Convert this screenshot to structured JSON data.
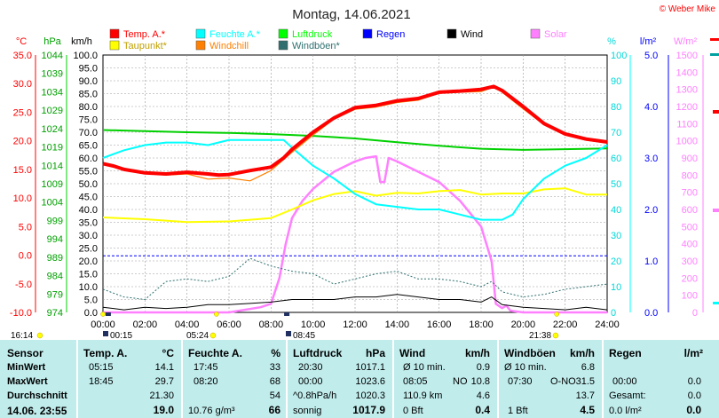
{
  "title": "Montag, 14.06.2021",
  "copyright": "© Weber Mike",
  "colors": {
    "temp": "#ff0000",
    "taupunkt": "#ffff00",
    "feuchte": "#00ffff",
    "windchill": "#ff8000",
    "luftdruck": "#00d000",
    "windboen": "#2f6f6f",
    "regen": "#0000ff",
    "wind": "#000000",
    "solar": "#ff80ff",
    "table_bg": "#c0ecec"
  },
  "legend": [
    {
      "label": "Temp. A.*",
      "color": "#ff0000"
    },
    {
      "label": "Feuchte A.*",
      "color": "#00ffff"
    },
    {
      "label": "Luftdruck",
      "color": "#00ff00"
    },
    {
      "label": "Regen",
      "color": "#0000ff"
    },
    {
      "label": "Wind",
      "color": "#000000"
    },
    {
      "label": "Solar",
      "color": "#ff80ff"
    },
    {
      "label": "Taupunkt*",
      "color": "#ffff00"
    },
    {
      "label": "Windchill",
      "color": "#ff8000"
    },
    {
      "label": "Windböen*",
      "color": "#2f6f6f"
    }
  ],
  "axis_units": {
    "celsius": "°C",
    "hpa": "hPa",
    "kmh": "km/h",
    "percent": "%",
    "rain": "l/m²",
    "solar": "W/m²"
  },
  "axes": {
    "celsius": {
      "ticks": [
        "35.0",
        "30.0",
        "25.0",
        "20.0",
        "15.0",
        "10.0",
        "5.0",
        "0.0",
        "-5.0",
        "-10.0"
      ]
    },
    "hpa": {
      "ticks": [
        "1044",
        "1039",
        "1034",
        "1029",
        "1024",
        "1019",
        "1014",
        "1009",
        "1004",
        "999",
        "994",
        "989",
        "984",
        "979",
        "974"
      ]
    },
    "kmh": {
      "ticks": [
        "100.0",
        "95.0",
        "90.0",
        "85.0",
        "80.0",
        "75.0",
        "70.0",
        "65.0",
        "60.0",
        "55.0",
        "50.0",
        "45.0",
        "40.0",
        "35.0",
        "30.0",
        "25.0",
        "20.0",
        "15.0",
        "10.0",
        "5.0",
        "0.0"
      ]
    },
    "percent": {
      "ticks": [
        "100",
        "90",
        "80",
        "70",
        "60",
        "50",
        "40",
        "30",
        "20",
        "10",
        "0"
      ]
    },
    "rain": {
      "ticks": [
        "5.0",
        "4.0",
        "3.0",
        "2.0",
        "1.0",
        "0.0"
      ]
    },
    "solar": {
      "ticks": [
        "1500",
        "1400",
        "1300",
        "1200",
        "1100",
        "1000",
        "900",
        "800",
        "700",
        "600",
        "500",
        "400",
        "300",
        "200",
        "100",
        "0"
      ]
    },
    "time": {
      "ticks": [
        "00:00",
        "02:00",
        "04:00",
        "06:00",
        "08:00",
        "10:00",
        "12:00",
        "14:00",
        "16:00",
        "18:00",
        "20:00",
        "22:00",
        "24:00"
      ]
    }
  },
  "time_markers": {
    "row1": [
      {
        "label": "16:14"
      },
      {
        "label": "05:24"
      },
      {
        "label": "21:38"
      }
    ],
    "row2": [
      {
        "label": "00:15"
      },
      {
        "label": "08:45"
      }
    ]
  },
  "chart_data": {
    "type": "line",
    "title": "Montag, 14.06.2021",
    "x_unit": "hours",
    "xlim": [
      0,
      24
    ],
    "series": [
      {
        "name": "Temp. A.*",
        "axis": "celsius",
        "points": [
          [
            0,
            16.0
          ],
          [
            0.5,
            15.6
          ],
          [
            1,
            15.0
          ],
          [
            2,
            14.4
          ],
          [
            3,
            14.2
          ],
          [
            4,
            14.5
          ],
          [
            5,
            14.2
          ],
          [
            5.5,
            14.0
          ],
          [
            6,
            14.1
          ],
          [
            7,
            14.8
          ],
          [
            8,
            15.4
          ],
          [
            8.6,
            17.0
          ],
          [
            9,
            18.5
          ],
          [
            10,
            21.5
          ],
          [
            11,
            24.0
          ],
          [
            12,
            25.8
          ],
          [
            13,
            26.2
          ],
          [
            14,
            27.0
          ],
          [
            15,
            27.4
          ],
          [
            16,
            28.5
          ],
          [
            17,
            28.7
          ],
          [
            18,
            29.0
          ],
          [
            18.6,
            29.5
          ],
          [
            19,
            28.8
          ],
          [
            20,
            26.0
          ],
          [
            21,
            23.0
          ],
          [
            22,
            21.2
          ],
          [
            23,
            20.3
          ],
          [
            24,
            19.8
          ]
        ]
      },
      {
        "name": "Taupunkt*",
        "axis": "celsius",
        "points": [
          [
            0,
            6.6
          ],
          [
            2,
            6.3
          ],
          [
            4,
            5.8
          ],
          [
            6,
            5.9
          ],
          [
            8,
            6.5
          ],
          [
            9,
            8.0
          ],
          [
            10,
            9.6
          ],
          [
            11,
            10.7
          ],
          [
            12,
            11.2
          ],
          [
            13,
            10.4
          ],
          [
            14,
            10.9
          ],
          [
            15,
            10.8
          ],
          [
            16,
            11.2
          ],
          [
            17,
            11.4
          ],
          [
            18,
            10.6
          ],
          [
            19,
            10.8
          ],
          [
            20,
            10.8
          ],
          [
            21,
            11.5
          ],
          [
            22,
            11.7
          ],
          [
            23,
            10.6
          ],
          [
            24,
            10.6
          ]
        ]
      },
      {
        "name": "Windchill",
        "axis": "celsius",
        "points": [
          [
            0,
            16.0
          ],
          [
            1,
            15.2
          ],
          [
            2,
            14.3
          ],
          [
            3,
            14.0
          ],
          [
            4,
            14.2
          ],
          [
            5,
            13.3
          ],
          [
            6,
            13.5
          ],
          [
            7,
            13.0
          ],
          [
            8,
            14.8
          ],
          [
            9,
            18.0
          ],
          [
            10,
            21.0
          ],
          [
            11,
            23.8
          ],
          [
            12,
            25.5
          ],
          [
            13,
            25.9
          ],
          [
            14,
            26.7
          ],
          [
            15,
            27.1
          ],
          [
            16,
            28.3
          ],
          [
            17,
            28.5
          ],
          [
            18,
            28.6
          ],
          [
            18.6,
            29.4
          ],
          [
            19,
            28.5
          ],
          [
            20,
            25.6
          ],
          [
            21,
            22.8
          ],
          [
            22,
            21.0
          ],
          [
            23,
            20.1
          ],
          [
            24,
            19.6
          ]
        ]
      },
      {
        "name": "Feuchte A.*",
        "axis": "percent",
        "points": [
          [
            0,
            60
          ],
          [
            1,
            63
          ],
          [
            2,
            65
          ],
          [
            3,
            66
          ],
          [
            4,
            66
          ],
          [
            5,
            65
          ],
          [
            6,
            67
          ],
          [
            7,
            67
          ],
          [
            8,
            67
          ],
          [
            8.6,
            67
          ],
          [
            9,
            64
          ],
          [
            10,
            57
          ],
          [
            11,
            52
          ],
          [
            12,
            46
          ],
          [
            13,
            42
          ],
          [
            14,
            41
          ],
          [
            15,
            40
          ],
          [
            16,
            40
          ],
          [
            17,
            38
          ],
          [
            18,
            36
          ],
          [
            19,
            36
          ],
          [
            19.5,
            38
          ],
          [
            20,
            44
          ],
          [
            21,
            52
          ],
          [
            22,
            57
          ],
          [
            23,
            60
          ],
          [
            24,
            65
          ]
        ]
      },
      {
        "name": "Luftdruck",
        "axis": "hpa",
        "points": [
          [
            0,
            1023.6
          ],
          [
            2,
            1023.3
          ],
          [
            4,
            1023.0
          ],
          [
            6,
            1022.8
          ],
          [
            8,
            1022.5
          ],
          [
            10,
            1022.0
          ],
          [
            12,
            1021.3
          ],
          [
            14,
            1020.3
          ],
          [
            16,
            1019.3
          ],
          [
            18,
            1018.5
          ],
          [
            20,
            1018.2
          ],
          [
            22,
            1018.4
          ],
          [
            24,
            1018.6
          ]
        ]
      },
      {
        "name": "Regen",
        "axis": "rain",
        "points": [
          [
            0,
            1.1
          ],
          [
            24,
            1.1
          ]
        ]
      },
      {
        "name": "Wind",
        "axis": "kmh",
        "points": [
          [
            0,
            2
          ],
          [
            1,
            1
          ],
          [
            2,
            2
          ],
          [
            3,
            1.5
          ],
          [
            4,
            2
          ],
          [
            5,
            3
          ],
          [
            6,
            3
          ],
          [
            7,
            3.5
          ],
          [
            8,
            4
          ],
          [
            9,
            5
          ],
          [
            10,
            5
          ],
          [
            11,
            5
          ],
          [
            12,
            6
          ],
          [
            13,
            6
          ],
          [
            14,
            7
          ],
          [
            15,
            6
          ],
          [
            16,
            5
          ],
          [
            17,
            5
          ],
          [
            18,
            4
          ],
          [
            18.5,
            6
          ],
          [
            19,
            3
          ],
          [
            20,
            2
          ],
          [
            21,
            1.5
          ],
          [
            22,
            1
          ],
          [
            23,
            2
          ],
          [
            24,
            1
          ]
        ]
      },
      {
        "name": "Windböen*",
        "axis": "kmh",
        "points": [
          [
            0,
            9
          ],
          [
            1,
            6
          ],
          [
            2,
            5
          ],
          [
            3,
            12
          ],
          [
            4,
            13
          ],
          [
            5,
            12
          ],
          [
            6,
            14
          ],
          [
            7,
            21
          ],
          [
            8,
            18
          ],
          [
            9,
            16
          ],
          [
            10,
            15
          ],
          [
            11,
            11
          ],
          [
            12,
            13
          ],
          [
            13,
            15
          ],
          [
            14,
            16
          ],
          [
            15,
            13
          ],
          [
            16,
            13
          ],
          [
            17,
            12
          ],
          [
            18,
            10
          ],
          [
            18.5,
            12
          ],
          [
            19,
            8
          ],
          [
            20,
            6
          ],
          [
            21,
            7
          ],
          [
            22,
            9
          ],
          [
            23,
            10
          ],
          [
            24,
            11
          ]
        ]
      },
      {
        "name": "Solar",
        "axis": "solar",
        "points": [
          [
            0,
            0
          ],
          [
            6.0,
            0
          ],
          [
            7.5,
            30
          ],
          [
            8.0,
            50
          ],
          [
            8.4,
            200
          ],
          [
            8.7,
            400
          ],
          [
            9.0,
            550
          ],
          [
            9.5,
            650
          ],
          [
            10,
            720
          ],
          [
            11,
            820
          ],
          [
            12,
            880
          ],
          [
            12.5,
            900
          ],
          [
            13,
            910
          ],
          [
            13.2,
            760
          ],
          [
            13.4,
            760
          ],
          [
            13.6,
            900
          ],
          [
            14,
            880
          ],
          [
            15,
            820
          ],
          [
            16,
            760
          ],
          [
            17,
            650
          ],
          [
            18,
            500
          ],
          [
            18.5,
            300
          ],
          [
            18.7,
            50
          ],
          [
            19,
            25
          ],
          [
            19.2,
            40
          ],
          [
            19.4,
            10
          ],
          [
            20,
            0
          ],
          [
            24,
            0
          ]
        ]
      }
    ]
  },
  "table": {
    "headers": {
      "sensor": "Sensor",
      "temp": "Temp. A.",
      "temp_unit": "°C",
      "feuchte": "Feuchte A.",
      "feuchte_unit": "%",
      "luftdruck": "Luftdruck",
      "luftdruck_unit": "hPa",
      "wind": "Wind",
      "wind_unit": "km/h",
      "windboen": "Windböen",
      "windboen_unit": "km/h",
      "regen": "Regen",
      "regen_unit": "l/m²"
    },
    "row_labels": {
      "min": "MinWert",
      "max": "MaxWert",
      "avg": "Durchschnitt",
      "now": "14.06. 23:55"
    },
    "temp": {
      "min_time": "05:15",
      "min": "14.1",
      "max_time": "18:45",
      "max": "29.7",
      "avg": "21.30",
      "now": "19.0"
    },
    "feuchte": {
      "min_time": "17:45",
      "min": "33",
      "max_time": "08:20",
      "max": "68",
      "avg": "54",
      "now_extra": "10.76 g/m³",
      "now": "66"
    },
    "luftdruck": {
      "min_time": "20:30",
      "min": "1017.1",
      "max_time": "00:00",
      "max": "1023.6",
      "avg_label": "^0.8hPa/h",
      "avg": "1020.3",
      "now_label": "sonnig",
      "now": "1017.9"
    },
    "wind": {
      "min_label": "Ø 10 min.",
      "min": "0.9",
      "max_time": "08:05",
      "max_dir": "NO",
      "max": "10.8",
      "avg_label": "110.9 km",
      "avg": "4.6",
      "now_label": "0 Bft",
      "now": "0.4"
    },
    "windboen": {
      "min_label": "Ø 10 min.",
      "min": "6.8",
      "max_time": "07:30",
      "max_dir": "O-NO",
      "max": "31.5",
      "avg": "13.7",
      "now_label": "1 Bft",
      "now": "4.5"
    },
    "regen": {
      "max_time": "00:00",
      "max": "0.0",
      "avg_label": "Gesamt:",
      "avg": "0.0",
      "now_label": "0.0 l/m²",
      "now": "0.0"
    }
  }
}
